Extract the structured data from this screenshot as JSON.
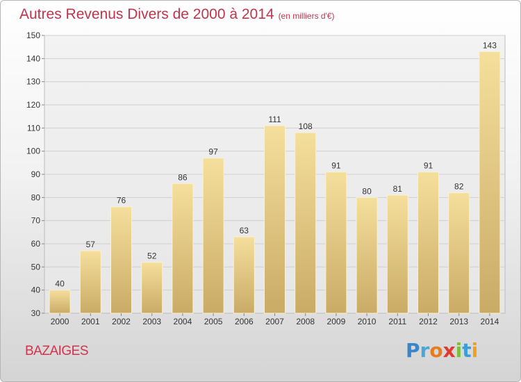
{
  "title": "Autres Revenus Divers de 2000 à 2014",
  "unit": "(en milliers d'€)",
  "commune": "BAZAIGES",
  "logo": {
    "text": "Proxiti"
  },
  "chart_data": {
    "type": "bar",
    "categories": [
      "2000",
      "2001",
      "2002",
      "2003",
      "2004",
      "2005",
      "2006",
      "2007",
      "2008",
      "2009",
      "2010",
      "2011",
      "2012",
      "2013",
      "2014"
    ],
    "values": [
      40,
      57,
      76,
      52,
      86,
      97,
      63,
      111,
      108,
      91,
      80,
      81,
      91,
      82,
      143
    ],
    "ylim": [
      30,
      150
    ],
    "yticks": [
      30,
      40,
      50,
      60,
      70,
      80,
      90,
      100,
      110,
      120,
      130,
      140,
      150
    ],
    "grid": true,
    "bar_color": "#e9cf86"
  }
}
